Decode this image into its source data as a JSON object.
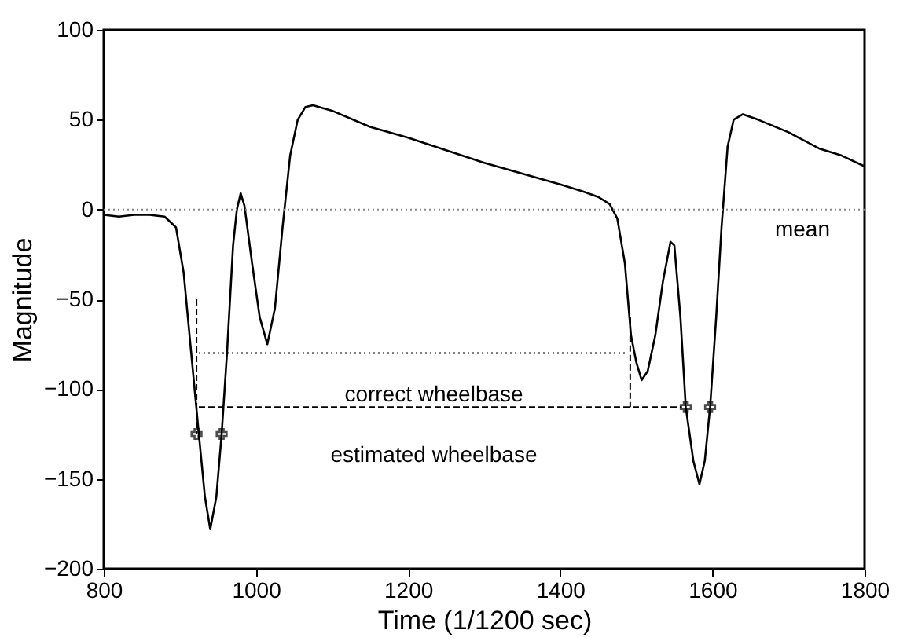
{
  "chart_data": {
    "type": "line",
    "xlabel": "Time (1/1200 sec)",
    "ylabel": "Magnitude",
    "xlim": [
      800,
      1800
    ],
    "ylim": [
      -200,
      100
    ],
    "xticks": [
      800,
      1000,
      1200,
      1400,
      1600,
      1800
    ],
    "yticks": [
      -200,
      -150,
      -100,
      -50,
      0,
      50,
      100
    ],
    "grid": false,
    "series": [
      {
        "color": "#000000",
        "line_style": "solid",
        "marker": "none",
        "x": [
          800,
          820,
          840,
          860,
          880,
          895,
          905,
          915,
          925,
          933,
          940,
          948,
          955,
          962,
          970,
          975,
          980,
          985,
          995,
          1005,
          1015,
          1025,
          1035,
          1045,
          1055,
          1065,
          1075,
          1100,
          1150,
          1200,
          1250,
          1300,
          1350,
          1400,
          1430,
          1450,
          1465,
          1475,
          1485,
          1493,
          1500,
          1507,
          1515,
          1525,
          1535,
          1545,
          1550,
          1558,
          1565,
          1575,
          1583,
          1590,
          1597,
          1605,
          1612,
          1620,
          1628,
          1640,
          1660,
          1700,
          1740,
          1770,
          1800
        ],
        "values": [
          -3,
          -4,
          -3,
          -3,
          -4,
          -10,
          -35,
          -80,
          -125,
          -160,
          -178,
          -160,
          -125,
          -80,
          -20,
          0,
          9,
          2,
          -30,
          -60,
          -75,
          -55,
          -10,
          30,
          50,
          57,
          58,
          55,
          46,
          40,
          33,
          26,
          20,
          14,
          10,
          7,
          3,
          -5,
          -30,
          -70,
          -85,
          -95,
          -90,
          -70,
          -40,
          -18,
          -20,
          -60,
          -110,
          -140,
          -153,
          -140,
          -110,
          -60,
          -10,
          35,
          50,
          53,
          50,
          43,
          34,
          30,
          24
        ]
      },
      {
        "type": "scatter",
        "color": "#000000",
        "marker": "cross",
        "x": [
          922,
          955,
          1565,
          1597
        ],
        "values": [
          -125,
          -125,
          -110,
          -110
        ]
      },
      {
        "type": "line",
        "color": "#000000",
        "line_style": "dotted",
        "marker": "none",
        "x": [
          925,
          1485
        ],
        "values": [
          -80,
          -80
        ]
      },
      {
        "type": "line",
        "color": "#000000",
        "line_style": "dashed",
        "marker": "none",
        "x": [
          925,
          1560
        ],
        "values": [
          -110,
          -110
        ]
      },
      {
        "type": "line",
        "color": "#000000",
        "line_style": "dashed",
        "marker": "none",
        "x": [
          922,
          922
        ],
        "values": [
          -50,
          -125
        ]
      },
      {
        "type": "line",
        "color": "#000000",
        "line_style": "dashed",
        "marker": "none",
        "x": [
          1492,
          1492
        ],
        "values": [
          -60,
          -110
        ]
      }
    ],
    "ref_lines": [
      {
        "axis": "y",
        "value": 0,
        "label": "mean",
        "color": "#888888",
        "line_style": "dotted"
      }
    ],
    "annotations": [
      "correct wheelbase",
      "estimated wheelbase"
    ]
  }
}
